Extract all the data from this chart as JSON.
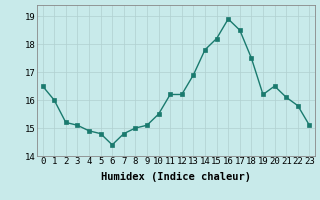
{
  "x": [
    0,
    1,
    2,
    3,
    4,
    5,
    6,
    7,
    8,
    9,
    10,
    11,
    12,
    13,
    14,
    15,
    16,
    17,
    18,
    19,
    20,
    21,
    22,
    23
  ],
  "y": [
    16.5,
    16.0,
    15.2,
    15.1,
    14.9,
    14.8,
    14.4,
    14.8,
    15.0,
    15.1,
    15.5,
    16.2,
    16.2,
    16.9,
    17.8,
    18.2,
    18.9,
    18.5,
    17.5,
    16.2,
    16.5,
    16.1,
    15.8,
    15.1
  ],
  "line_color": "#1a7a6e",
  "marker_color": "#1a7a6e",
  "bg_color": "#c8eaea",
  "grid_color": "#b0d0d0",
  "xlabel": "Humidex (Indice chaleur)",
  "ylim": [
    14,
    19.4
  ],
  "xlim": [
    -0.5,
    23.5
  ],
  "yticks": [
    14,
    15,
    16,
    17,
    18,
    19
  ],
  "xticks": [
    0,
    1,
    2,
    3,
    4,
    5,
    6,
    7,
    8,
    9,
    10,
    11,
    12,
    13,
    14,
    15,
    16,
    17,
    18,
    19,
    20,
    21,
    22,
    23
  ],
  "xlabel_fontsize": 7.5,
  "tick_fontsize": 6.5,
  "linewidth": 1.0,
  "markersize": 2.5
}
